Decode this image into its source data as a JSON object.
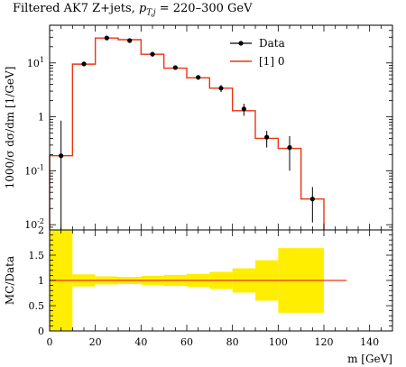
{
  "chart_data": [
    {
      "type": "line",
      "title": "Filtered AK7 Z+jets, p_T,j = 220–300 GeV",
      "ylabel": "1000/σ dσ/dm [1/GeV]",
      "xlabel": "m [GeV]",
      "y_scale": "log",
      "ylim": [
        0.008,
        50
      ],
      "xlim": [
        0,
        150
      ],
      "y_ticks": [
        "10^1",
        "1",
        "10^-1",
        "10^-2"
      ],
      "legend": "top-right",
      "legend_entries": [
        "Data",
        "[1] 0"
      ],
      "series": [
        {
          "name": "Data",
          "style": "points with error bars",
          "color": "#000000",
          "points": [
            {
              "x": 5,
              "y": 0.19,
              "ylo": 0.008,
              "yhi": 0.85
            },
            {
              "x": 15,
              "y": 9.6,
              "ylo": 8.9,
              "yhi": 10.3
            },
            {
              "x": 25,
              "y": 29,
              "ylo": 28,
              "yhi": 30
            },
            {
              "x": 35,
              "y": 26,
              "ylo": 25,
              "yhi": 27
            },
            {
              "x": 45,
              "y": 14.5,
              "ylo": 13.8,
              "yhi": 15.2
            },
            {
              "x": 55,
              "y": 8.2,
              "ylo": 7.6,
              "yhi": 8.8
            },
            {
              "x": 65,
              "y": 5.4,
              "ylo": 4.9,
              "yhi": 5.9
            },
            {
              "x": 75,
              "y": 3.4,
              "ylo": 2.9,
              "yhi": 3.9
            },
            {
              "x": 85,
              "y": 1.4,
              "ylo": 1.05,
              "yhi": 1.75
            },
            {
              "x": 95,
              "y": 0.42,
              "ylo": 0.27,
              "yhi": 0.55
            },
            {
              "x": 105,
              "y": 0.27,
              "ylo": 0.1,
              "yhi": 0.44
            },
            {
              "x": 115,
              "y": 0.03,
              "ylo": 0.011,
              "yhi": 0.05
            }
          ]
        },
        {
          "name": "[1] 0",
          "style": "histogram",
          "color": "#ee3311",
          "bins": [
            {
              "x0": 0,
              "x1": 10,
              "y": 0.19
            },
            {
              "x0": 10,
              "x1": 20,
              "y": 9.5
            },
            {
              "x0": 20,
              "x1": 30,
              "y": 29
            },
            {
              "x0": 30,
              "x1": 40,
              "y": 27
            },
            {
              "x0": 40,
              "x1": 50,
              "y": 14.5
            },
            {
              "x0": 50,
              "x1": 60,
              "y": 8.0
            },
            {
              "x0": 60,
              "x1": 70,
              "y": 5.3
            },
            {
              "x0": 70,
              "x1": 80,
              "y": 3.4
            },
            {
              "x0": 80,
              "x1": 90,
              "y": 1.3
            },
            {
              "x0": 90,
              "x1": 100,
              "y": 0.4
            },
            {
              "x0": 100,
              "x1": 110,
              "y": 0.26
            },
            {
              "x0": 110,
              "x1": 120,
              "y": 0.03
            }
          ]
        }
      ]
    },
    {
      "type": "area",
      "ylabel": "MC/Data",
      "xlabel": "m [GeV]",
      "xlim": [
        0,
        150
      ],
      "ylim": [
        0,
        2
      ],
      "x_ticks": [
        "0",
        "20",
        "40",
        "60",
        "80",
        "100",
        "120",
        "140"
      ],
      "y_ticks": [
        "0",
        "0.5",
        "1",
        "1.5",
        "2"
      ],
      "band_color": "#ffee00",
      "line_color": "#ee3311",
      "ratio_line": {
        "x0": 0,
        "x1": 130,
        "y": 1.0
      },
      "band": [
        {
          "x0": 0,
          "x1": 10,
          "lo": 0,
          "hi": 2
        },
        {
          "x0": 10,
          "x1": 20,
          "lo": 0.88,
          "hi": 1.12
        },
        {
          "x0": 20,
          "x1": 30,
          "lo": 0.92,
          "hi": 1.08
        },
        {
          "x0": 30,
          "x1": 40,
          "lo": 0.93,
          "hi": 1.07
        },
        {
          "x0": 40,
          "x1": 50,
          "lo": 0.91,
          "hi": 1.09
        },
        {
          "x0": 50,
          "x1": 60,
          "lo": 0.89,
          "hi": 1.11
        },
        {
          "x0": 60,
          "x1": 70,
          "lo": 0.87,
          "hi": 1.13
        },
        {
          "x0": 70,
          "x1": 80,
          "lo": 0.83,
          "hi": 1.17
        },
        {
          "x0": 80,
          "x1": 90,
          "lo": 0.76,
          "hi": 1.24
        },
        {
          "x0": 90,
          "x1": 100,
          "lo": 0.6,
          "hi": 1.4
        },
        {
          "x0": 100,
          "x1": 120,
          "lo": 0.36,
          "hi": 1.64
        }
      ]
    }
  ]
}
